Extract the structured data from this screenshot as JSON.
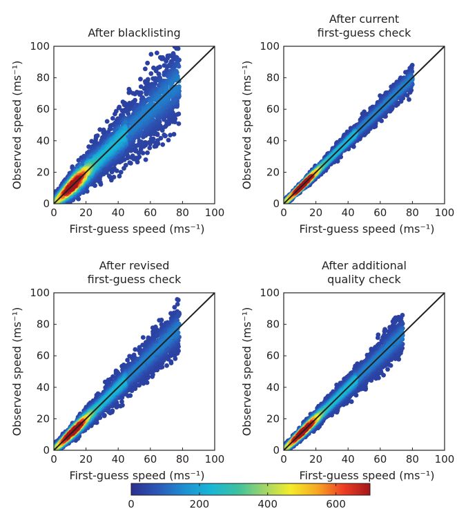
{
  "figure": {
    "colorbar": {
      "range": [
        0,
        700
      ],
      "ticks": [
        "0",
        "200",
        "400",
        "600"
      ],
      "colors": [
        "#2b2f8f",
        "#2c58b8",
        "#1d8fd2",
        "#1ab6d6",
        "#3cc0a0",
        "#9ed56a",
        "#f4ec2a",
        "#f7a823",
        "#ee3d23",
        "#a4161c"
      ]
    }
  },
  "chart_data": [
    {
      "type": "heatmap",
      "title_lines": [
        "After blacklisting"
      ],
      "xlabel": "First-guess speed (ms⁻¹)",
      "ylabel": "Observed speed (ms⁻¹)",
      "xlim": [
        0,
        100
      ],
      "ylim": [
        0,
        100
      ],
      "xticks": [
        "0",
        "20",
        "40",
        "60",
        "80",
        "100"
      ],
      "yticks": [
        "0",
        "20",
        "40",
        "60",
        "80",
        "100"
      ],
      "diagonal": true,
      "spread_scale": 1.0,
      "max_speed": 78,
      "peak": [
        12,
        11
      ]
    },
    {
      "type": "heatmap",
      "title_lines": [
        "After current",
        "first-guess check"
      ],
      "xlabel": "First-guess speed (ms⁻¹)",
      "ylabel": "Observed speed (ms⁻¹)",
      "xlim": [
        0,
        100
      ],
      "ylim": [
        0,
        100
      ],
      "xticks": [
        "0",
        "20",
        "40",
        "60",
        "80",
        "100"
      ],
      "yticks": [
        "0",
        "20",
        "40",
        "60",
        "80",
        "100"
      ],
      "diagonal": true,
      "spread_scale": 0.3,
      "max_speed": 80,
      "peak": [
        12,
        11
      ]
    },
    {
      "type": "heatmap",
      "title_lines": [
        "After revised",
        "first-guess check"
      ],
      "xlabel": "First-guess speed (ms⁻¹)",
      "ylabel": "Observed speed (ms⁻¹)",
      "xlim": [
        0,
        100
      ],
      "ylim": [
        0,
        100
      ],
      "xticks": [
        "0",
        "20",
        "40",
        "60",
        "80",
        "100"
      ],
      "yticks": [
        "0",
        "20",
        "40",
        "60",
        "80",
        "100"
      ],
      "diagonal": true,
      "spread_scale": 0.55,
      "max_speed": 78,
      "peak": [
        12,
        11
      ]
    },
    {
      "type": "heatmap",
      "title_lines": [
        "After additional",
        "quality check"
      ],
      "xlabel": "First-guess speed (ms⁻¹)",
      "ylabel": "Observed speed (ms⁻¹)",
      "xlim": [
        0,
        100
      ],
      "ylim": [
        0,
        100
      ],
      "xticks": [
        "0",
        "20",
        "40",
        "60",
        "80",
        "100"
      ],
      "yticks": [
        "0",
        "20",
        "40",
        "60",
        "80",
        "100"
      ],
      "diagonal": true,
      "spread_scale": 0.45,
      "max_speed": 74,
      "peak": [
        12,
        11
      ]
    }
  ]
}
